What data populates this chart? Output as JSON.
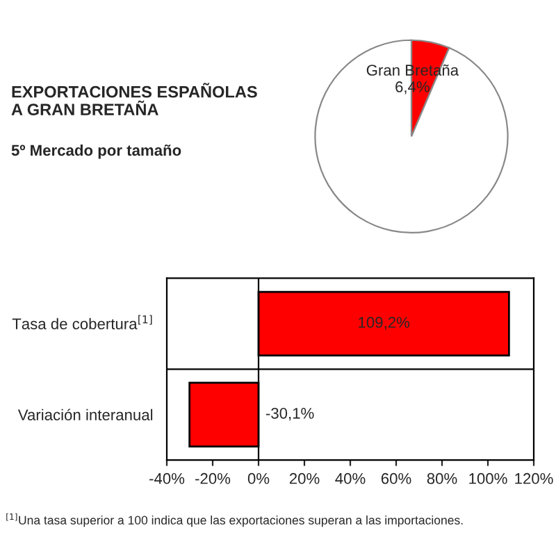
{
  "chart_data": [
    {
      "type": "pie",
      "title": "EXPORTACIONES ESPAÑOLAS\nA GRAN BRETAÑA",
      "subtitle": "5º Mercado por tamaño",
      "categories": [
        "Gran Bretaña",
        null
      ],
      "values": [
        6.4,
        93.6
      ],
      "colors": [
        "#ff0000",
        "#ffffff"
      ],
      "value_labels": [
        "6,4%",
        null
      ]
    },
    {
      "type": "bar",
      "orientation": "horizontal",
      "categories": [
        "Tasa de cobertura$^{[1]}$",
        "Variación interanual"
      ],
      "values": [
        109.2,
        -30.1
      ],
      "color": "#ff0000",
      "value_labels": [
        "109,2%",
        "-30,1%"
      ],
      "xlim": [
        -40,
        120
      ],
      "xticks": [
        {
          "value": -40,
          "label": "-40%"
        },
        {
          "value": -20,
          "label": "-20%"
        },
        {
          "value": 0,
          "label": "0%"
        },
        {
          "value": 20,
          "label": "20%"
        },
        {
          "value": 40,
          "label": "40%"
        },
        {
          "value": 60,
          "label": "60%"
        },
        {
          "value": 80,
          "label": "80%"
        },
        {
          "value": 100,
          "label": "100%"
        },
        {
          "value": 120,
          "label": "120%"
        }
      ],
      "annotations": [
        "$^{[1]}$Una tasa superior a 100 indica que las exportaciones superan a las importaciones."
      ]
    }
  ]
}
